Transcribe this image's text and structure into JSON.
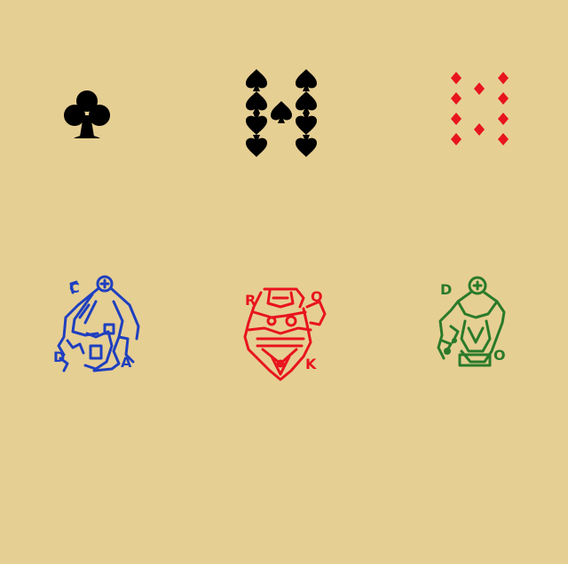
{
  "board": {
    "background": "#e6cf93"
  },
  "cards": [
    {
      "name": "ace-of-clubs",
      "suit": "clubs",
      "pips": 1,
      "color": "#000000",
      "icon": "club-icon"
    },
    {
      "name": "ten-of-spades",
      "suit": "spades",
      "pips": 10,
      "color": "#000000",
      "icon": "spade-icon"
    },
    {
      "name": "ten-of-diamonds",
      "suit": "diamonds",
      "pips": 10,
      "color": "#e8141e",
      "icon": "diamond-icon"
    },
    {
      "name": "blue-court-card",
      "color": "#1f3fbf",
      "icon": "court-figure-icon",
      "corner_top": "C",
      "corner_bottom": "A",
      "corner_left": "D"
    },
    {
      "name": "red-court-card",
      "color": "#e8141e",
      "icon": "court-figure-icon",
      "corner_top": "R",
      "corner_bottom": "K",
      "corner_right": "Q"
    },
    {
      "name": "green-court-card",
      "color": "#2a7a2a",
      "icon": "court-figure-icon",
      "corner_top": "D",
      "corner_bottom": "O"
    }
  ]
}
